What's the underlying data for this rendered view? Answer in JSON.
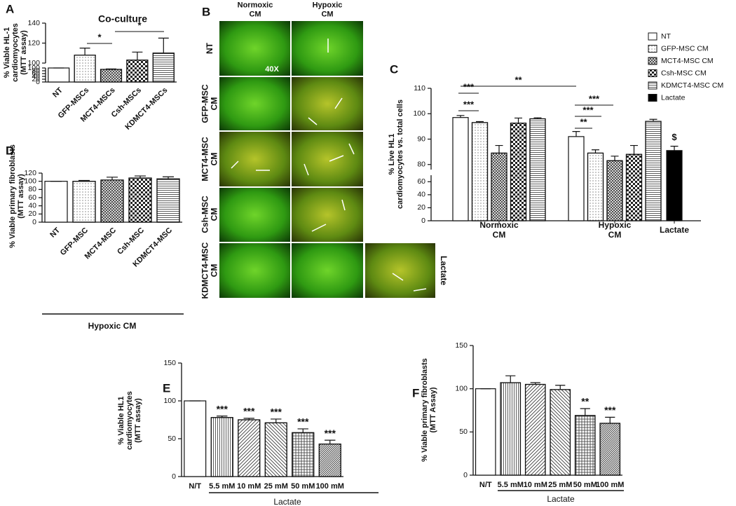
{
  "chart_data": [
    {
      "type": "bar",
      "panel": "A",
      "title": "Co-culture",
      "ylabel": [
        "% Viable HL-1",
        "cardiomyocytes",
        "(MTT assay)"
      ],
      "categories": [
        "NT",
        "GFP-MSCs",
        "MCT4-MSCs",
        "Csh-MSCs",
        "KDMCT4-MSCs"
      ],
      "values": [
        100,
        108,
        90,
        103,
        110
      ],
      "errors": [
        0,
        7,
        3,
        8,
        15
      ],
      "color": "#ffffff",
      "patterns": [
        "none",
        "dots",
        "crosshatch",
        "checker",
        "hlines"
      ],
      "y_segments": [
        {
          "ylim": [
            0,
            100
          ],
          "yticks": [
            0,
            20,
            40,
            60,
            80,
            100
          ]
        },
        {
          "ylim": [
            100,
            140
          ],
          "yticks": [
            100,
            120,
            140
          ]
        }
      ],
      "comparisons": [
        "*",
        "*"
      ]
    },
    {
      "type": "grouped_bar",
      "panel": "C",
      "ylabel": [
        "% Live HL1",
        "cardiomyocytes vs. total cells"
      ],
      "categories": [
        [
          "Normoxic",
          "CM"
        ],
        [
          "Hypoxic",
          "CM"
        ],
        "Lactate"
      ],
      "series": [
        {
          "name": "NT",
          "color": "#ffffff",
          "pattern": "none",
          "values": [
            98.5,
            91,
            null
          ],
          "errors": [
            0.8,
            2,
            null
          ]
        },
        {
          "name": "GFP-MSC CM",
          "color": "#ffffff",
          "pattern": "dots",
          "values": [
            96.5,
            84.5,
            null
          ],
          "errors": [
            0.4,
            1.3,
            null
          ]
        },
        {
          "name": "MCT4-MSC CM",
          "color": "#ffffff",
          "pattern": "crosshatch",
          "values": [
            84.5,
            81.5,
            null
          ],
          "errors": [
            3,
            1.8,
            null
          ]
        },
        {
          "name": "Csh-MSC CM",
          "color": "#ffffff",
          "pattern": "checker",
          "values": [
            96.3,
            84,
            null
          ],
          "errors": [
            2,
            3.5,
            null
          ]
        },
        {
          "name": "KDMCT4-MSC CM",
          "color": "#ffffff",
          "pattern": "hlines",
          "values": [
            98,
            97,
            null
          ],
          "errors": [
            0.4,
            0.8,
            null
          ]
        },
        {
          "name": "Lactate",
          "color": "#000000",
          "pattern": "none",
          "values": [
            null,
            null,
            85.5
          ],
          "errors": [
            null,
            null,
            1.7
          ],
          "labels": [
            null,
            null,
            "$"
          ]
        }
      ],
      "y_segments": [
        {
          "ylim": [
            0,
            70
          ],
          "yticks": [
            0,
            20,
            40,
            60
          ]
        },
        {
          "ylim": [
            78,
            110
          ],
          "yticks": [
            80,
            90,
            100,
            110
          ]
        }
      ],
      "comparisons": [
        "**",
        "***",
        "***",
        "***",
        "***",
        "**"
      ],
      "legend": "upper right"
    },
    {
      "type": "bar",
      "panel": "D",
      "ylabel": [
        "% Viable primary fibroblasts",
        "(MTT assay)"
      ],
      "categories": [
        "NT",
        "GFP-MSC",
        "MCT4-MSC",
        "Csh-MSC",
        "KDMCT4-MSC"
      ],
      "values": [
        100,
        100,
        103,
        108,
        106
      ],
      "errors": [
        0,
        2,
        7,
        5,
        5
      ],
      "color": "#ffffff",
      "patterns": [
        "none",
        "dots",
        "crosshatch",
        "checker",
        "hlines"
      ],
      "ylim": [
        0,
        120
      ],
      "yticks": [
        0,
        20,
        40,
        60,
        80,
        100,
        120
      ],
      "xlabel": "Hypoxic CM"
    },
    {
      "type": "bar",
      "panel": "E",
      "ylabel": [
        "% Viable HL1",
        "cardiomyocytes",
        "(MTT assay)"
      ],
      "categories": [
        "N/T",
        "5.5 mM",
        "10 mM",
        "25 mM",
        "50 mM",
        "100 mM"
      ],
      "values": [
        100,
        78,
        75,
        71,
        58,
        43
      ],
      "errors": [
        0,
        2,
        2,
        5,
        5,
        5
      ],
      "color": "#ffffff",
      "patterns": [
        "none",
        "vlines",
        "diag",
        "diag2",
        "grid",
        "diagdense"
      ],
      "significance": [
        null,
        "***",
        "***",
        "***",
        "***",
        "***"
      ],
      "ylim": [
        0,
        150
      ],
      "yticks": [
        0,
        50,
        100,
        150
      ],
      "xlabel": "Lactate"
    },
    {
      "type": "bar",
      "panel": "F",
      "ylabel": [
        "% Viable primary fibroblasts",
        "(MTT Assay)"
      ],
      "categories": [
        "N/T",
        "5.5 mM",
        "10 mM",
        "25 mM",
        "50 mM",
        "100 mM"
      ],
      "values": [
        100,
        107,
        105,
        99,
        69,
        60
      ],
      "errors": [
        0,
        8,
        2,
        5,
        8,
        7
      ],
      "color": "#ffffff",
      "patterns": [
        "none",
        "vlines",
        "diag",
        "diag2",
        "grid",
        "diagdense"
      ],
      "significance": [
        null,
        null,
        null,
        null,
        "**",
        "***"
      ],
      "ylim": [
        0,
        150
      ],
      "yticks": [
        0,
        50,
        100,
        150
      ],
      "xlabel": "Lactate"
    }
  ],
  "micrographs": {
    "panel": "B",
    "columns": [
      [
        "Normoxic",
        "CM"
      ],
      [
        "Hypoxic",
        "CM"
      ]
    ],
    "rows": [
      "NT",
      [
        "GFP-MSC",
        "CM"
      ],
      [
        "MCT4-MSC",
        "CM"
      ],
      [
        "Csh-MSC",
        "CM"
      ],
      [
        "KDMCT4-MSC",
        "CM"
      ]
    ],
    "magnification": "40X",
    "extra_label": "Lactate"
  }
}
